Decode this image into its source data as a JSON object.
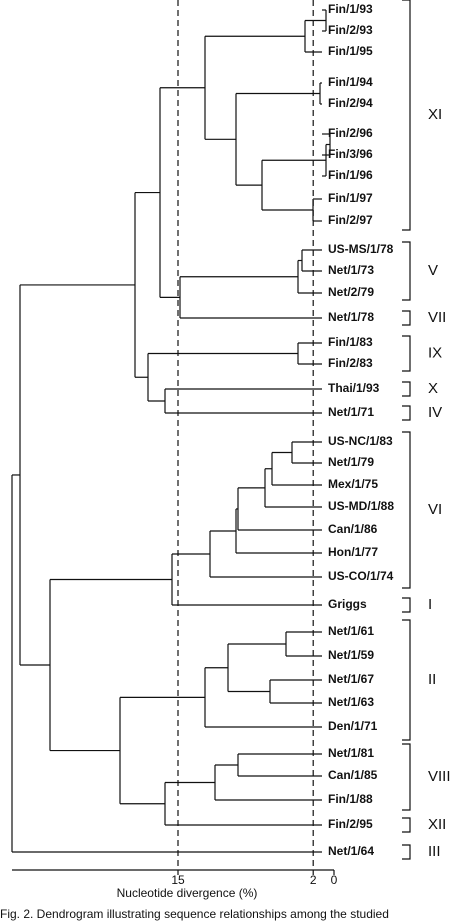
{
  "leaves": [
    "Fin/1/93",
    "Fin/2/93",
    "Fin/1/95",
    "Fin/1/94",
    "Fin/2/94",
    "Fin/2/96",
    "Fin/3/96",
    "Fin/1/96",
    "Fin/1/97",
    "Fin/2/97",
    "US-MS/1/78",
    "Net/1/73",
    "Net/2/79",
    "Net/1/78",
    "Fin/1/83",
    "Fin/2/83",
    "Thai/1/93",
    "Net/1/71",
    "US-NC/1/83",
    "Net/1/79",
    "Mex/1/75",
    "US-MD/1/88",
    "Can/1/86",
    "Hon/1/77",
    "US-CO/1/74",
    "Griggs",
    "Net/1/61",
    "Net/1/59",
    "Net/1/67",
    "Net/1/63",
    "Den/1/71",
    "Net/1/81",
    "Can/1/85",
    "Fin/1/88",
    "Fin/2/95",
    "Net/1/64"
  ],
  "groups": [
    "XI",
    "V",
    "VII",
    "IX",
    "X",
    "IV",
    "VI",
    "I",
    "II",
    "VIII",
    "XII",
    "III"
  ],
  "axis": {
    "label": "Nucleotide divergence (%)",
    "ticks": [
      15,
      2,
      0
    ]
  },
  "caption": "Fig. 2. Dendrogram illustrating sequence relationships among the studied"
}
